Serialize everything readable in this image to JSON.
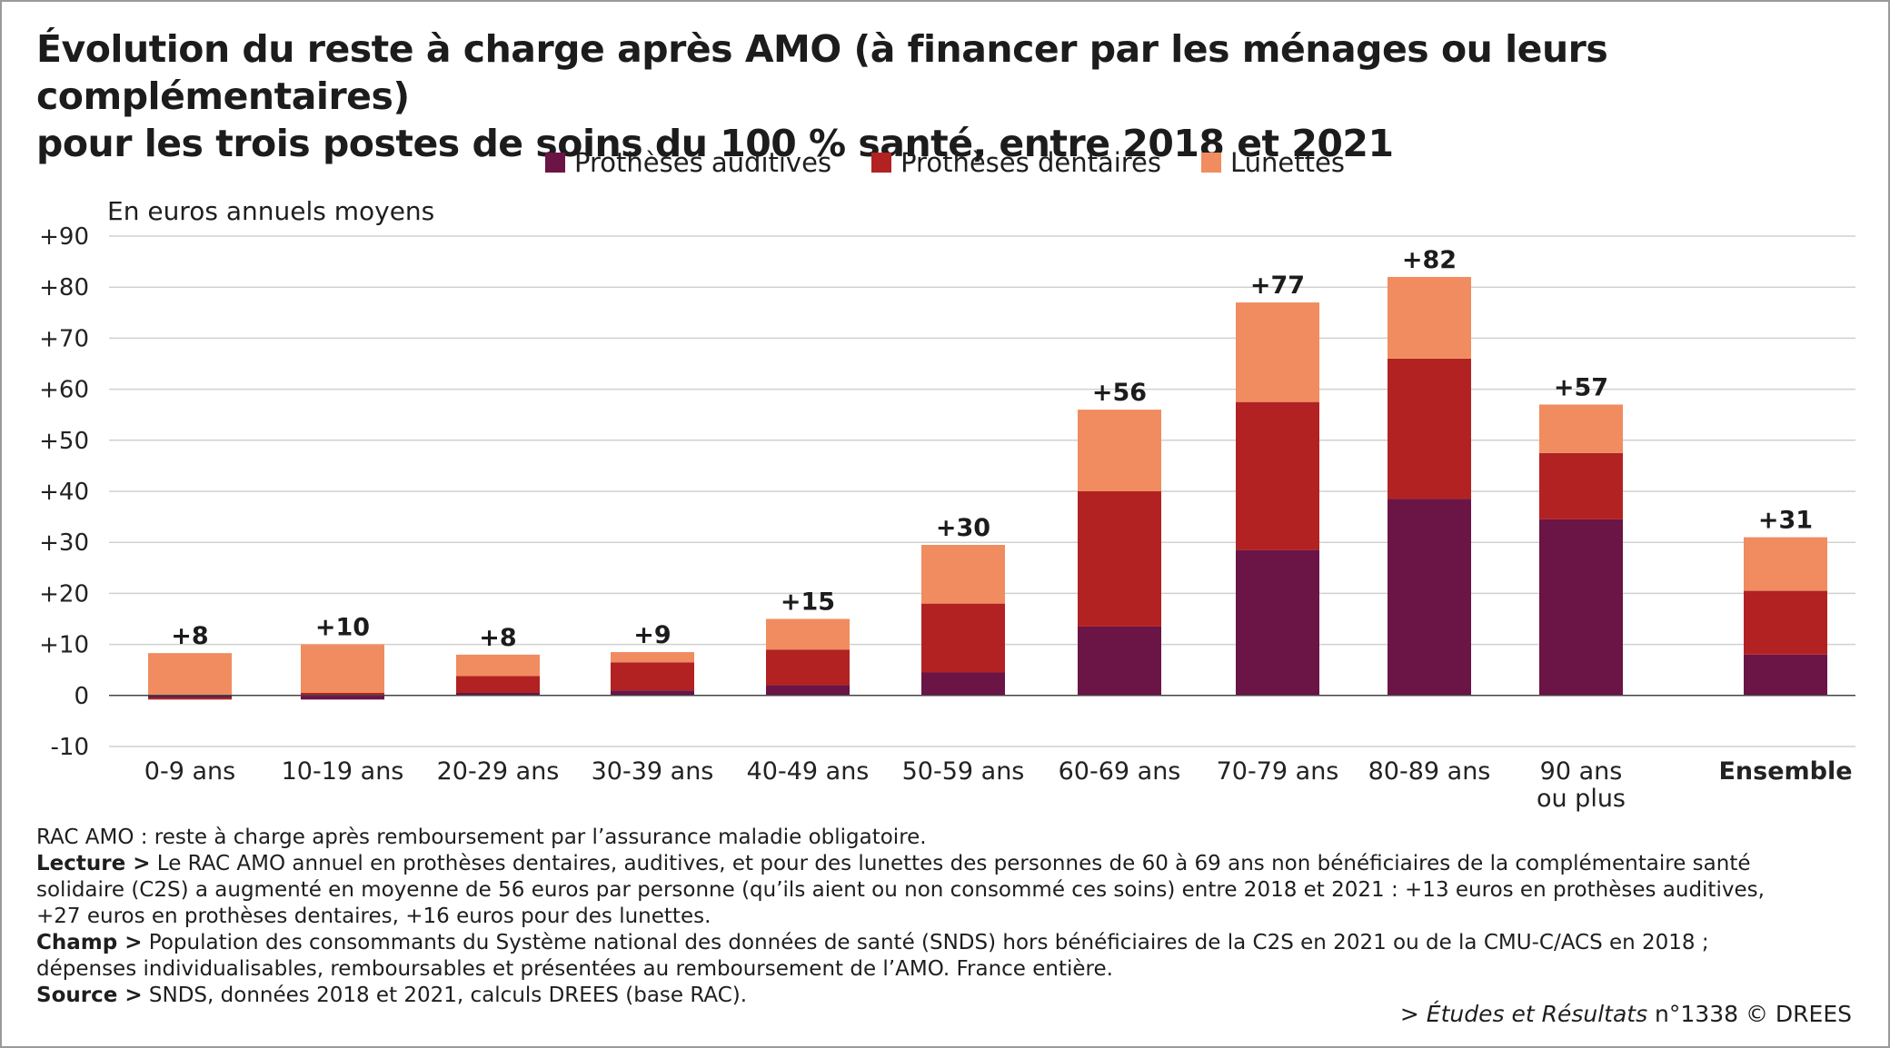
{
  "title_line1": "Évolution du reste à charge après AMO (à financer par les ménages ou leurs complémentaires)",
  "title_line2": "pour les trois postes de soins du 100 % santé, entre 2018 et 2021",
  "unit_label": "En euros annuels moyens",
  "colors": {
    "auditives": "#6b1446",
    "dentaires": "#b22222",
    "lunettes": "#f08c60",
    "grid": "#d0d0d0"
  },
  "chart_data": {
    "type": "bar",
    "stacked": true,
    "categories": [
      "0-9 ans",
      "10-19 ans",
      "20-29 ans",
      "30-39 ans",
      "40-49 ans",
      "50-59 ans",
      "60-69 ans",
      "70-79 ans",
      "80-89 ans",
      "90 ans ou plus",
      "Ensemble"
    ],
    "category_lines": [
      [
        "0-9 ans"
      ],
      [
        "10-19 ans"
      ],
      [
        "20-29 ans"
      ],
      [
        "30-39 ans"
      ],
      [
        "40-49 ans"
      ],
      [
        "50-59 ans"
      ],
      [
        "60-69 ans"
      ],
      [
        "70-79 ans"
      ],
      [
        "80-89 ans"
      ],
      [
        "90 ans",
        "ou plus"
      ],
      [
        "Ensemble"
      ]
    ],
    "series": [
      {
        "name": "Prothèses auditives",
        "values": [
          -0.5,
          -0.8,
          0.5,
          1,
          2,
          4.5,
          13.5,
          28.5,
          38.5,
          34.5,
          8
        ]
      },
      {
        "name": "Prothèses dentaires",
        "values": [
          -0.3,
          0.5,
          3.3,
          5.5,
          7,
          13.5,
          26.5,
          29,
          27.5,
          13,
          12.5
        ]
      },
      {
        "name": "Lunettes",
        "values": [
          8.3,
          9.5,
          4.2,
          2,
          6,
          11.5,
          16,
          19.5,
          16,
          9.5,
          10.5
        ]
      }
    ],
    "totals": [
      "+8",
      "+10",
      "+8",
      "+9",
      "+15",
      "+30",
      "+56",
      "+77",
      "+82",
      "+57",
      "+31"
    ],
    "yticks": [
      "+90",
      "+80",
      "+70",
      "+60",
      "+50",
      "+40",
      "+30",
      "+20",
      "+10",
      "0",
      "-10"
    ],
    "ylim": [
      -10,
      90
    ],
    "grid": true,
    "legend_position": "top-center"
  },
  "notes": {
    "abbr": "RAC AMO : reste à charge après remboursement par l’assurance maladie obligatoire.",
    "lecture_label": "Lecture >",
    "lecture_l1": " Le RAC AMO annuel en prothèses dentaires, auditives, et pour des lunettes des personnes de 60 à 69 ans non bénéficiaires de la complémentaire santé",
    "lecture_l2": "solidaire (C2S) a augmenté en moyenne de 56 euros par personne (qu’ils aient ou non consommé ces soins) entre 2018 et 2021 : +13 euros en prothèses auditives,",
    "lecture_l3": "+27 euros en prothèses dentaires, +16 euros pour des lunettes.",
    "champ_label": "Champ >",
    "champ_l1": " Population des consommants du Système national des données de santé (SNDS) hors bénéficiaires de la C2S en 2021 ou de la CMU-C/ACS en 2018 ;",
    "champ_l2": "dépenses individualisables, remboursables et présentées au remboursement de l’AMO. France entière.",
    "source_label": "Source >",
    "source_text": " SNDS, données 2018 et 2021, calculs DREES (base RAC)."
  },
  "credit": {
    "prefix": "> ",
    "pub": "Études et Résultats",
    "num": " n°1338 © DREES"
  }
}
